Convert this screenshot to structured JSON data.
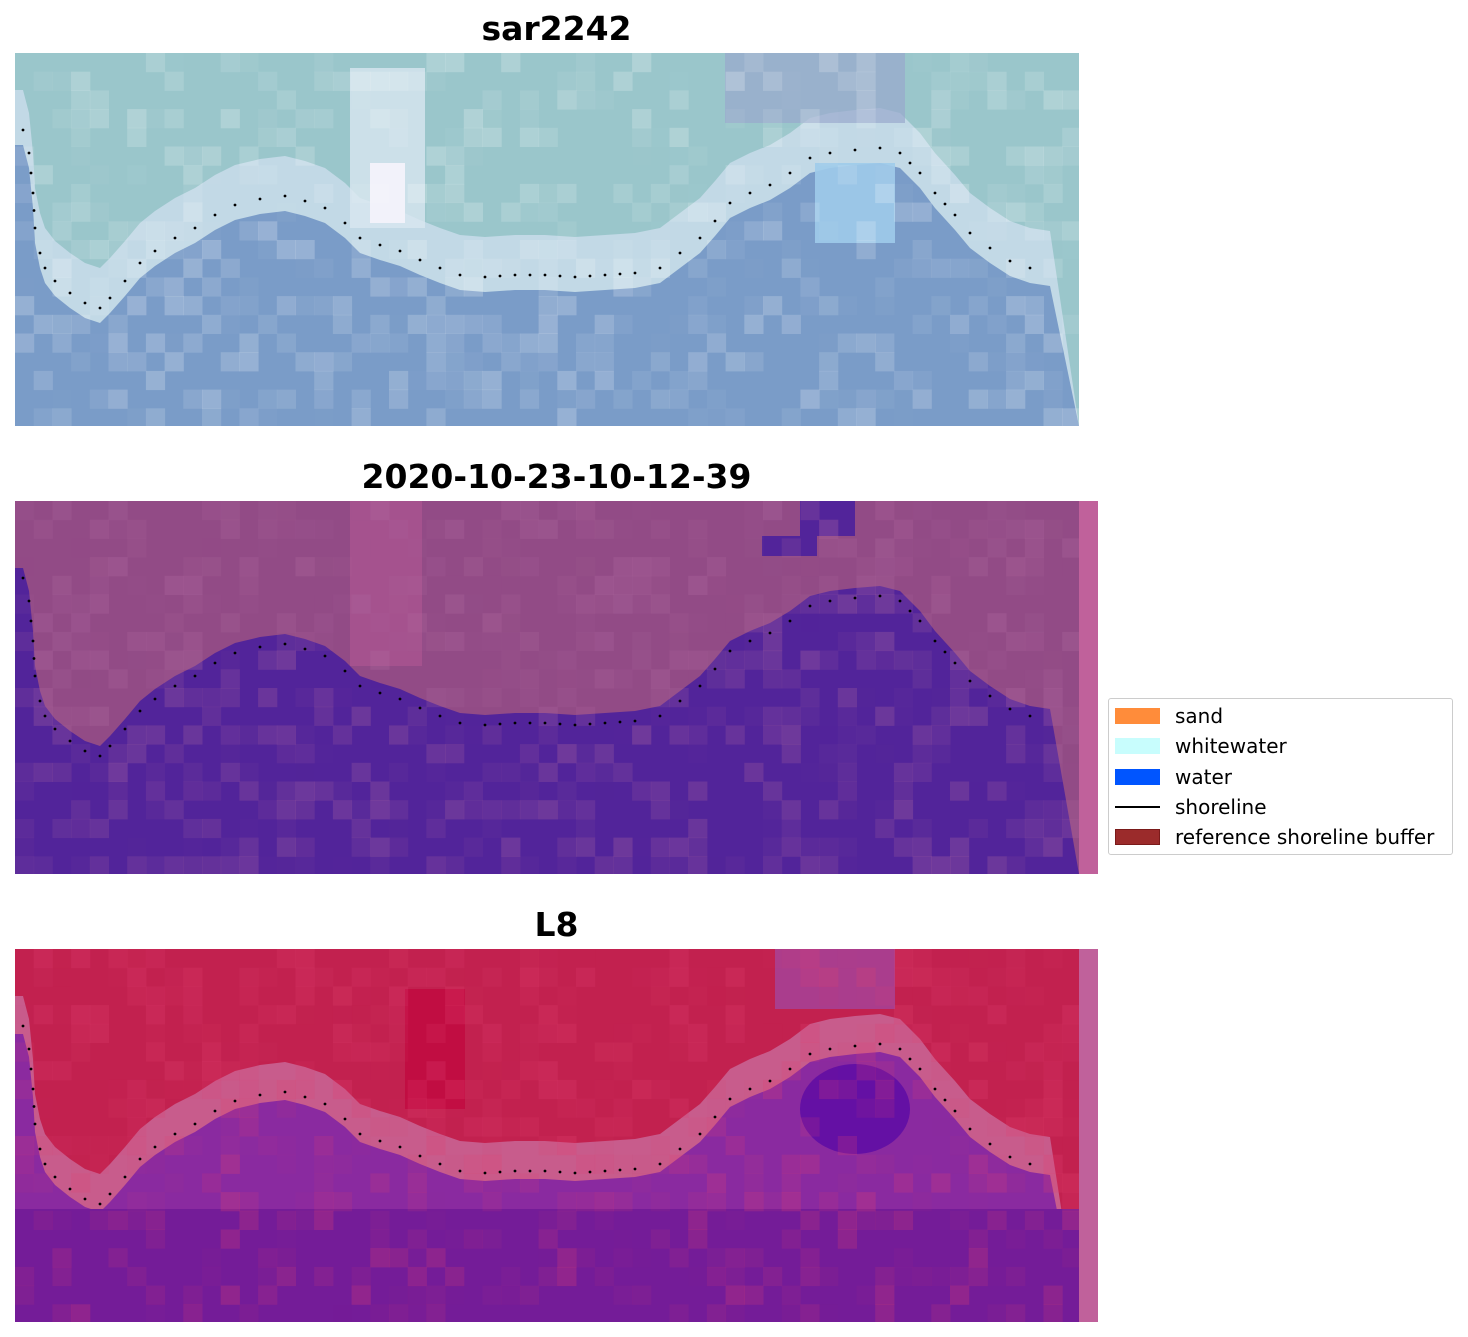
{
  "panels": [
    {
      "title": "sar2242",
      "background": "#8fb3c9",
      "has_buffer_strip": false
    },
    {
      "title": "2020-10-23-10-12-39",
      "background": "#8f4b85",
      "has_buffer_strip": true
    },
    {
      "title": "L8",
      "background": "#c22454",
      "has_buffer_strip": true
    }
  ],
  "legend": {
    "items": [
      {
        "label": "sand",
        "kind": "patch",
        "color": "#ff8c3a"
      },
      {
        "label": "whitewater",
        "kind": "patch",
        "color": "#c8fdfd"
      },
      {
        "label": "water",
        "kind": "patch",
        "color": "#0055ff"
      },
      {
        "label": "shoreline",
        "kind": "line",
        "color": "#000000"
      },
      {
        "label": "reference shoreline buffer",
        "kind": "patch",
        "color": "#9b2b2b",
        "border": "#7a1a1a"
      }
    ]
  },
  "colors": {
    "sar_top": "#9ac6cb",
    "sar_band": "#c2d9e6",
    "sar_water": "#7a9cc8",
    "sar_bright": "#f2f2fa",
    "classified_land": "#924b86",
    "classified_water": "#52249a",
    "classified_highlight": "#b45a96",
    "buffer_strip": "#c0619b",
    "l8_land": "#c2214f",
    "l8_band": "#c85c8c",
    "l8_water": "#741c98",
    "l8_dark": "#5a0aa5"
  }
}
